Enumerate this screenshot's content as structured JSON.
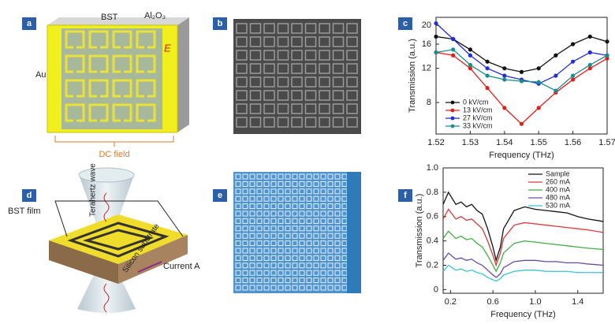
{
  "panels": {
    "a": {
      "label": "a",
      "bst": "BST",
      "al2o3": "Al₂O₃",
      "au": "Au",
      "field": "E",
      "dc": "DC field"
    },
    "b": {
      "label": "b"
    },
    "c": {
      "label": "c"
    },
    "d": {
      "label": "d",
      "film": "BST film",
      "wave": "Terahertz wave",
      "substrate": "Silicon substrate",
      "current": "Current A"
    },
    "e": {
      "label": "e"
    },
    "f": {
      "label": "f"
    }
  },
  "chart_data": [
    {
      "type": "line",
      "xlabel": "Frequency (THz)",
      "ylabel": "Transmission (a.u.)",
      "log_y": true,
      "markers": true,
      "legend": "lower left",
      "x": [
        1.52,
        1.525,
        1.53,
        1.535,
        1.54,
        1.545,
        1.55,
        1.555,
        1.56,
        1.565,
        1.57
      ],
      "xlim": [
        1.52,
        1.57
      ],
      "xticks": [
        1.52,
        1.53,
        1.54,
        1.55,
        1.56,
        1.57
      ],
      "ylim": [
        5.5,
        22
      ],
      "yticks": [
        8,
        12,
        16,
        20
      ],
      "series": [
        {
          "name": "0 kV/cm",
          "color": "#111111",
          "values": [
            17.5,
            17,
            15,
            13,
            12,
            11.5,
            12,
            14,
            16,
            17.5,
            16.5
          ]
        },
        {
          "name": "13 kV/cm",
          "color": "#e0201b",
          "values": [
            14.5,
            14,
            12,
            9.5,
            7.5,
            6.2,
            7.5,
            9,
            10.5,
            12,
            13.5
          ]
        },
        {
          "name": "27 kV/cm",
          "color": "#1f2fd0",
          "values": [
            20.5,
            17,
            14,
            12,
            11,
            10.5,
            10,
            11,
            13,
            14.5,
            14
          ]
        },
        {
          "name": "33 kV/cm",
          "color": "#1a8c8c",
          "values": [
            14.5,
            15,
            12.5,
            11,
            10.5,
            10.3,
            10.2,
            9.2,
            11,
            12.5,
            14
          ]
        }
      ]
    },
    {
      "type": "line",
      "xlabel": "Frequency (THz)",
      "ylabel": "Transmission (a.u.)",
      "log_y": false,
      "markers": false,
      "legend": "upper right",
      "x": [
        0.13,
        0.18,
        0.25,
        0.3,
        0.35,
        0.4,
        0.45,
        0.5,
        0.55,
        0.6,
        0.63,
        0.67,
        0.7,
        0.8,
        0.9,
        1.0,
        1.1,
        1.2,
        1.3,
        1.4,
        1.5,
        1.64
      ],
      "xlim": [
        0.13,
        1.64
      ],
      "xticks": [
        0.2,
        0.6,
        {
          "value": 1,
          "label": "1.0"
        },
        1.4
      ],
      "ylim": [
        -0.03,
        1
      ],
      "yticks": [
        0,
        0.2,
        0.4,
        0.6,
        0.8,
        {
          "value": 1,
          "label": "1.0"
        }
      ],
      "series": [
        {
          "name": "Sample",
          "color": "#111111",
          "values": [
            0.7,
            0.8,
            0.7,
            0.72,
            0.68,
            0.7,
            0.65,
            0.62,
            0.5,
            0.35,
            0.24,
            0.35,
            0.5,
            0.65,
            0.68,
            0.66,
            0.65,
            0.64,
            0.63,
            0.6,
            0.58,
            0.56
          ]
        },
        {
          "name": "260 mA",
          "color": "#d43a3a",
          "values": [
            0.58,
            0.66,
            0.58,
            0.6,
            0.57,
            0.58,
            0.54,
            0.5,
            0.4,
            0.28,
            0.2,
            0.3,
            0.42,
            0.53,
            0.55,
            0.54,
            0.53,
            0.52,
            0.51,
            0.5,
            0.49,
            0.47
          ]
        },
        {
          "name": "400 mA",
          "color": "#3fae3f",
          "values": [
            0.42,
            0.48,
            0.42,
            0.44,
            0.41,
            0.42,
            0.38,
            0.35,
            0.28,
            0.2,
            0.15,
            0.22,
            0.3,
            0.38,
            0.4,
            0.39,
            0.38,
            0.37,
            0.36,
            0.35,
            0.34,
            0.33
          ]
        },
        {
          "name": "480 mA",
          "color": "#6a4aa8",
          "values": [
            0.24,
            0.3,
            0.25,
            0.26,
            0.24,
            0.25,
            0.22,
            0.2,
            0.16,
            0.12,
            0.1,
            0.13,
            0.18,
            0.23,
            0.24,
            0.24,
            0.23,
            0.23,
            0.22,
            0.22,
            0.21,
            0.2
          ]
        },
        {
          "name": "530 mA",
          "color": "#3ac4d0",
          "values": [
            0.15,
            0.2,
            0.16,
            0.17,
            0.15,
            0.16,
            0.14,
            0.13,
            0.1,
            0.08,
            0.07,
            0.09,
            0.12,
            0.15,
            0.16,
            0.16,
            0.15,
            0.15,
            0.15,
            0.14,
            0.14,
            0.14
          ]
        }
      ]
    }
  ]
}
